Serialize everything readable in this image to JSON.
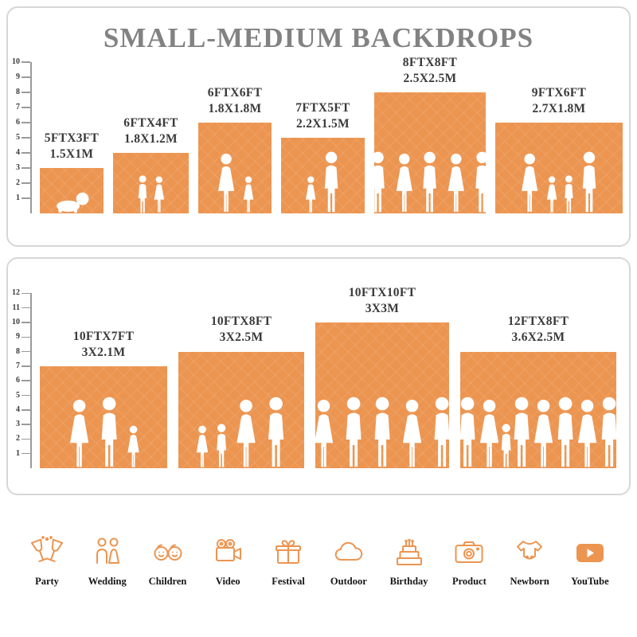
{
  "title": "SMALL-MEDIUM BACKDROPS",
  "accent_color": "#EC9551",
  "chart_data": [
    {
      "type": "bar",
      "title": "SMALL-MEDIUM BACKDROPS",
      "ylim": [
        0,
        10
      ],
      "categories": [
        "5FTX3FT",
        "6FTX4FT",
        "6FTX6FT",
        "7FTX5FT",
        "8FTX8FT",
        "9FTX6FT"
      ],
      "values": [
        3,
        4,
        6,
        5,
        8,
        6
      ],
      "widths_ft": [
        5,
        6,
        6,
        7,
        8,
        9
      ],
      "labels_m": [
        "1.5X1M",
        "1.8X1.2M",
        "1.8X1.8M",
        "2.2X1.5M",
        "2.5X2.5M",
        "2.7X1.8M"
      ],
      "people": [
        [
          "baby"
        ],
        [
          "boy",
          "girl"
        ],
        [
          "woman",
          "girl"
        ],
        [
          "girl",
          "man"
        ],
        [
          "man",
          "woman",
          "man",
          "woman",
          "man"
        ],
        [
          "woman",
          "girl",
          "boy",
          "man"
        ]
      ]
    },
    {
      "type": "bar",
      "ylim": [
        0,
        12
      ],
      "categories": [
        "10FTX7FT",
        "10FTX8FT",
        "10FTX10FT",
        "12FTX8FT"
      ],
      "values": [
        7,
        8,
        10,
        8
      ],
      "widths_ft": [
        10,
        10,
        10,
        12
      ],
      "labels_m": [
        "3X2.1M",
        "3X2.5M",
        "3X3M",
        "3.6X2.5M"
      ],
      "people": [
        [
          "woman",
          "man",
          "girl"
        ],
        [
          "girl",
          "boy",
          "woman",
          "man"
        ],
        [
          "woman",
          "man",
          "man",
          "woman",
          "man"
        ],
        [
          "man",
          "woman",
          "boy",
          "man",
          "woman",
          "man",
          "woman",
          "man"
        ]
      ]
    }
  ],
  "footer": {
    "categories": [
      {
        "icon": "party-icon",
        "label": "Party"
      },
      {
        "icon": "wedding-icon",
        "label": "Wedding"
      },
      {
        "icon": "children-icon",
        "label": "Children"
      },
      {
        "icon": "video-icon",
        "label": "Video"
      },
      {
        "icon": "festival-icon",
        "label": "Festival"
      },
      {
        "icon": "outdoor-icon",
        "label": "Outdoor"
      },
      {
        "icon": "birthday-icon",
        "label": "Birthday"
      },
      {
        "icon": "product-icon",
        "label": "Product"
      },
      {
        "icon": "newborn-icon",
        "label": "Newborn"
      },
      {
        "icon": "youtube-icon",
        "label": "YouTube"
      }
    ]
  }
}
